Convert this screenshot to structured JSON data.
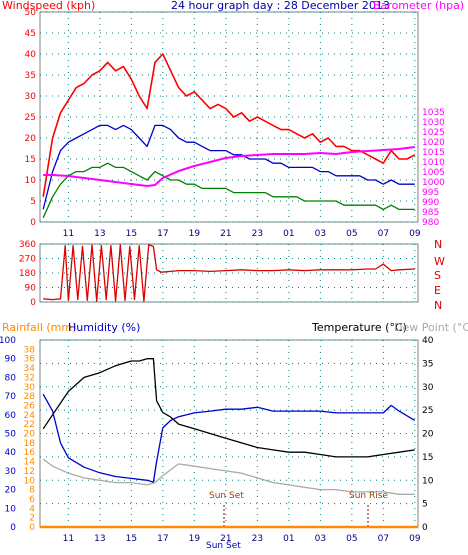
{
  "colors": {
    "wind_max": "#ff0000",
    "wind_avg": "#0000cc",
    "wind_min": "#008000",
    "barometer": "#ff00ff",
    "direction": "#dd0000",
    "temperature": "#000000",
    "humidity": "#0000cc",
    "dew_point": "#aaaaaa",
    "rainfall": "#ff8c00",
    "axis_left_top": "#ff0000",
    "axis_right_top": "#ff00ff",
    "axis_left_bottom": "#0000cc",
    "axis_rain": "#ff8c00",
    "axis_right_bottom": "#000000",
    "grid": "#008080",
    "title_blue": "#0000aa"
  },
  "header": {
    "windspeed_label": "Windspeed (kph)",
    "title": "24 hour graph day : 28 December 2013",
    "barometer_label": "Barometer (hpa)"
  },
  "lower_header": {
    "rainfall_label": "Rainfall (mm)",
    "humidity_label": "Humidity (%)",
    "temperature_label": "Temperature (°C)",
    "dewpoint_label": "Dew Point (°C)"
  },
  "x_ticks": [
    "11",
    "13",
    "15",
    "17",
    "19",
    "21",
    "23",
    "01",
    "03",
    "05",
    "07",
    "09"
  ],
  "direction_labels": [
    "N",
    "W",
    "S",
    "E",
    "N"
  ],
  "sun": {
    "sunset_label": "Sun Set",
    "sunrise_label": "Sun Rise",
    "bottom_label": "Sun Set"
  },
  "chart_data": [
    {
      "type": "line",
      "title": "24 hour graph day : 28 December 2013",
      "xlabel": "",
      "ylabel": "Windspeed (kph)",
      "y2label": "Barometer (hpa)",
      "x_range_hours": [
        9.2,
        33.2
      ],
      "ylim": [
        0,
        50
      ],
      "y2lim": [
        980,
        1085
      ],
      "yticks": [
        0,
        5,
        10,
        15,
        20,
        25,
        30,
        35,
        40,
        45,
        50
      ],
      "y2ticks": [
        980,
        985,
        990,
        995,
        1000,
        1005,
        1010,
        1015,
        1020,
        1025,
        1030,
        1035
      ],
      "grid": true,
      "series": [
        {
          "name": "Wind Max",
          "x": [
            9.4,
            10,
            10.5,
            11,
            11.5,
            12,
            12.5,
            13,
            13.5,
            14,
            14.5,
            15,
            15.5,
            16,
            16.5,
            17,
            17.5,
            18,
            18.5,
            19,
            19.5,
            20,
            20.5,
            21,
            21.5,
            22,
            22.5,
            23,
            23.5,
            24,
            24.5,
            25,
            25.5,
            26,
            26.5,
            27,
            27.5,
            28,
            28.5,
            29,
            29.5,
            30,
            30.5,
            31,
            31.5,
            32,
            32.5,
            33
          ],
          "values": [
            6,
            20,
            26,
            29,
            32,
            33,
            35,
            36,
            38,
            36,
            37,
            34,
            30,
            27,
            38,
            40,
            36,
            32,
            30,
            31,
            29,
            27,
            28,
            27,
            25,
            26,
            24,
            25,
            24,
            23,
            22,
            22,
            21,
            20,
            21,
            19,
            20,
            18,
            18,
            17,
            17,
            16,
            15,
            14,
            17,
            15,
            15,
            16
          ]
        },
        {
          "name": "Wind Avg",
          "x": [
            9.4,
            10,
            10.5,
            11,
            11.5,
            12,
            12.5,
            13,
            13.5,
            14,
            14.5,
            15,
            15.5,
            16,
            16.5,
            17,
            17.5,
            18,
            18.5,
            19,
            19.5,
            20,
            20.5,
            21,
            21.5,
            22,
            22.5,
            23,
            23.5,
            24,
            24.5,
            25,
            25.5,
            26,
            26.5,
            27,
            27.5,
            28,
            28.5,
            29,
            29.5,
            30,
            30.5,
            31,
            31.5,
            32,
            32.5,
            33
          ],
          "values": [
            3,
            12,
            17,
            19,
            20,
            21,
            22,
            23,
            23,
            22,
            23,
            22,
            20,
            18,
            23,
            23,
            22,
            20,
            19,
            19,
            18,
            17,
            17,
            17,
            16,
            16,
            15,
            15,
            15,
            14,
            14,
            13,
            13,
            13,
            13,
            12,
            12,
            11,
            11,
            11,
            11,
            10,
            10,
            9,
            10,
            9,
            9,
            9
          ]
        },
        {
          "name": "Wind Min",
          "x": [
            9.4,
            10,
            10.5,
            11,
            11.5,
            12,
            12.5,
            13,
            13.5,
            14,
            14.5,
            15,
            15.5,
            16,
            16.5,
            17,
            17.5,
            18,
            18.5,
            19,
            19.5,
            20,
            20.5,
            21,
            21.5,
            22,
            22.5,
            23,
            23.5,
            24,
            24.5,
            25,
            25.5,
            26,
            26.5,
            27,
            27.5,
            28,
            28.5,
            29,
            29.5,
            30,
            30.5,
            31,
            31.5,
            32,
            32.5,
            33
          ],
          "values": [
            1,
            6,
            9,
            11,
            12,
            12,
            13,
            13,
            14,
            13,
            13,
            12,
            11,
            10,
            12,
            11,
            10,
            10,
            9,
            9,
            8,
            8,
            8,
            8,
            7,
            7,
            7,
            7,
            7,
            6,
            6,
            6,
            6,
            5,
            5,
            5,
            5,
            5,
            4,
            4,
            4,
            4,
            4,
            3,
            4,
            3,
            3,
            3
          ]
        },
        {
          "name": "Barometer",
          "axis": "y2",
          "x": [
            9.4,
            10,
            11,
            12,
            13,
            14,
            15,
            16,
            16.5,
            17,
            18,
            19,
            20,
            21,
            22,
            23,
            24,
            25,
            26,
            27,
            28,
            29,
            30,
            31,
            32,
            33
          ],
          "values": [
            1003.5,
            1003.5,
            1003,
            1002,
            1001,
            1000,
            999,
            998,
            998.5,
            1002,
            1005.5,
            1008,
            1010,
            1012,
            1013,
            1013.5,
            1014,
            1014,
            1014,
            1014.5,
            1014,
            1015,
            1015.5,
            1016,
            1016.5,
            1017.5
          ]
        }
      ]
    },
    {
      "type": "line",
      "ylabel": "",
      "yticks": [
        0,
        90,
        180,
        270,
        360
      ],
      "ylim": [
        0,
        360
      ],
      "x_range_hours": [
        9.2,
        33.2
      ],
      "grid": true,
      "series": [
        {
          "name": "Wind Direction",
          "x": [
            9.4,
            10,
            10.5,
            10.8,
            11,
            11.3,
            11.6,
            11.9,
            12.2,
            12.5,
            12.8,
            13.1,
            13.4,
            13.7,
            14,
            14.3,
            14.6,
            14.9,
            15.2,
            15.5,
            15.8,
            16.1,
            16.4,
            16.6,
            16.9,
            17.5,
            18,
            19,
            20,
            21,
            22,
            23,
            24,
            25,
            26,
            27,
            28,
            29,
            30,
            30.5,
            31,
            31.5,
            32,
            33
          ],
          "values": [
            20,
            15,
            20,
            350,
            10,
            350,
            15,
            345,
            10,
            355,
            5,
            350,
            15,
            350,
            5,
            355,
            10,
            345,
            15,
            350,
            5,
            355,
            345,
            200,
            185,
            190,
            195,
            195,
            190,
            195,
            200,
            195,
            195,
            200,
            195,
            200,
            200,
            200,
            205,
            205,
            235,
            195,
            200,
            205
          ]
        }
      ]
    },
    {
      "type": "line",
      "x_range_hours": [
        9.2,
        33.2
      ],
      "ylim": [
        0,
        100
      ],
      "ylim_rain": [
        0,
        40
      ],
      "y2lim": [
        0,
        40
      ],
      "yticks": [
        0,
        10,
        20,
        30,
        40,
        50,
        60,
        70,
        80,
        90,
        100
      ],
      "yticks_rain": [
        0,
        2,
        4,
        6,
        8,
        10,
        12,
        14,
        16,
        18,
        20,
        22,
        24,
        26,
        28,
        30,
        32,
        34,
        36,
        38
      ],
      "y2ticks": [
        0,
        5,
        10,
        15,
        20,
        25,
        30,
        35,
        40
      ],
      "grid": true,
      "series": [
        {
          "name": "Temperature",
          "axis": "y2",
          "x": [
            9.4,
            10,
            11,
            12,
            13,
            14,
            15,
            15.5,
            16,
            16.4,
            16.6,
            17,
            17.5,
            18,
            19,
            20,
            21,
            22,
            23,
            24,
            25,
            26,
            27,
            28,
            29,
            30,
            31,
            32,
            33
          ],
          "values": [
            21,
            24,
            29,
            32,
            33,
            34.5,
            35.5,
            35.5,
            36,
            36,
            27,
            24.5,
            23.5,
            22,
            21,
            20,
            19,
            18,
            17,
            16.5,
            16,
            16,
            15.5,
            15,
            15,
            15,
            15.5,
            16,
            16.5
          ]
        },
        {
          "name": "Humidity",
          "x": [
            9.4,
            10,
            10.5,
            11,
            12,
            13,
            14,
            15,
            16,
            16.4,
            16.6,
            17,
            17.5,
            18,
            19,
            20,
            21,
            22,
            23,
            24,
            25,
            26,
            27,
            28,
            29,
            30,
            31,
            31.5,
            32,
            33
          ],
          "values": [
            71,
            62,
            45,
            37,
            32,
            29,
            27,
            26,
            25,
            24,
            35,
            53,
            57,
            59,
            61,
            62,
            63,
            63,
            64,
            62,
            62,
            62,
            62,
            61,
            61,
            61,
            61,
            65,
            62,
            57
          ]
        },
        {
          "name": "Dew Point",
          "axis": "y2",
          "x": [
            9.4,
            10,
            11,
            12,
            13,
            14,
            15,
            16,
            16.5,
            17,
            18,
            19,
            20,
            21,
            22,
            23,
            24,
            25,
            26,
            27,
            28,
            29,
            30,
            31,
            32,
            33
          ],
          "values": [
            14.5,
            13,
            11.5,
            10.5,
            10,
            9.5,
            9.5,
            9,
            9.5,
            11,
            13.5,
            13,
            12.5,
            12,
            11.5,
            10.5,
            9.5,
            9,
            8.5,
            8,
            8,
            7.5,
            7.5,
            7.5,
            7,
            7
          ]
        },
        {
          "name": "Rainfall",
          "axis": "rain",
          "x": [
            9.2,
            33.2
          ],
          "values": [
            0,
            0
          ]
        }
      ]
    }
  ]
}
